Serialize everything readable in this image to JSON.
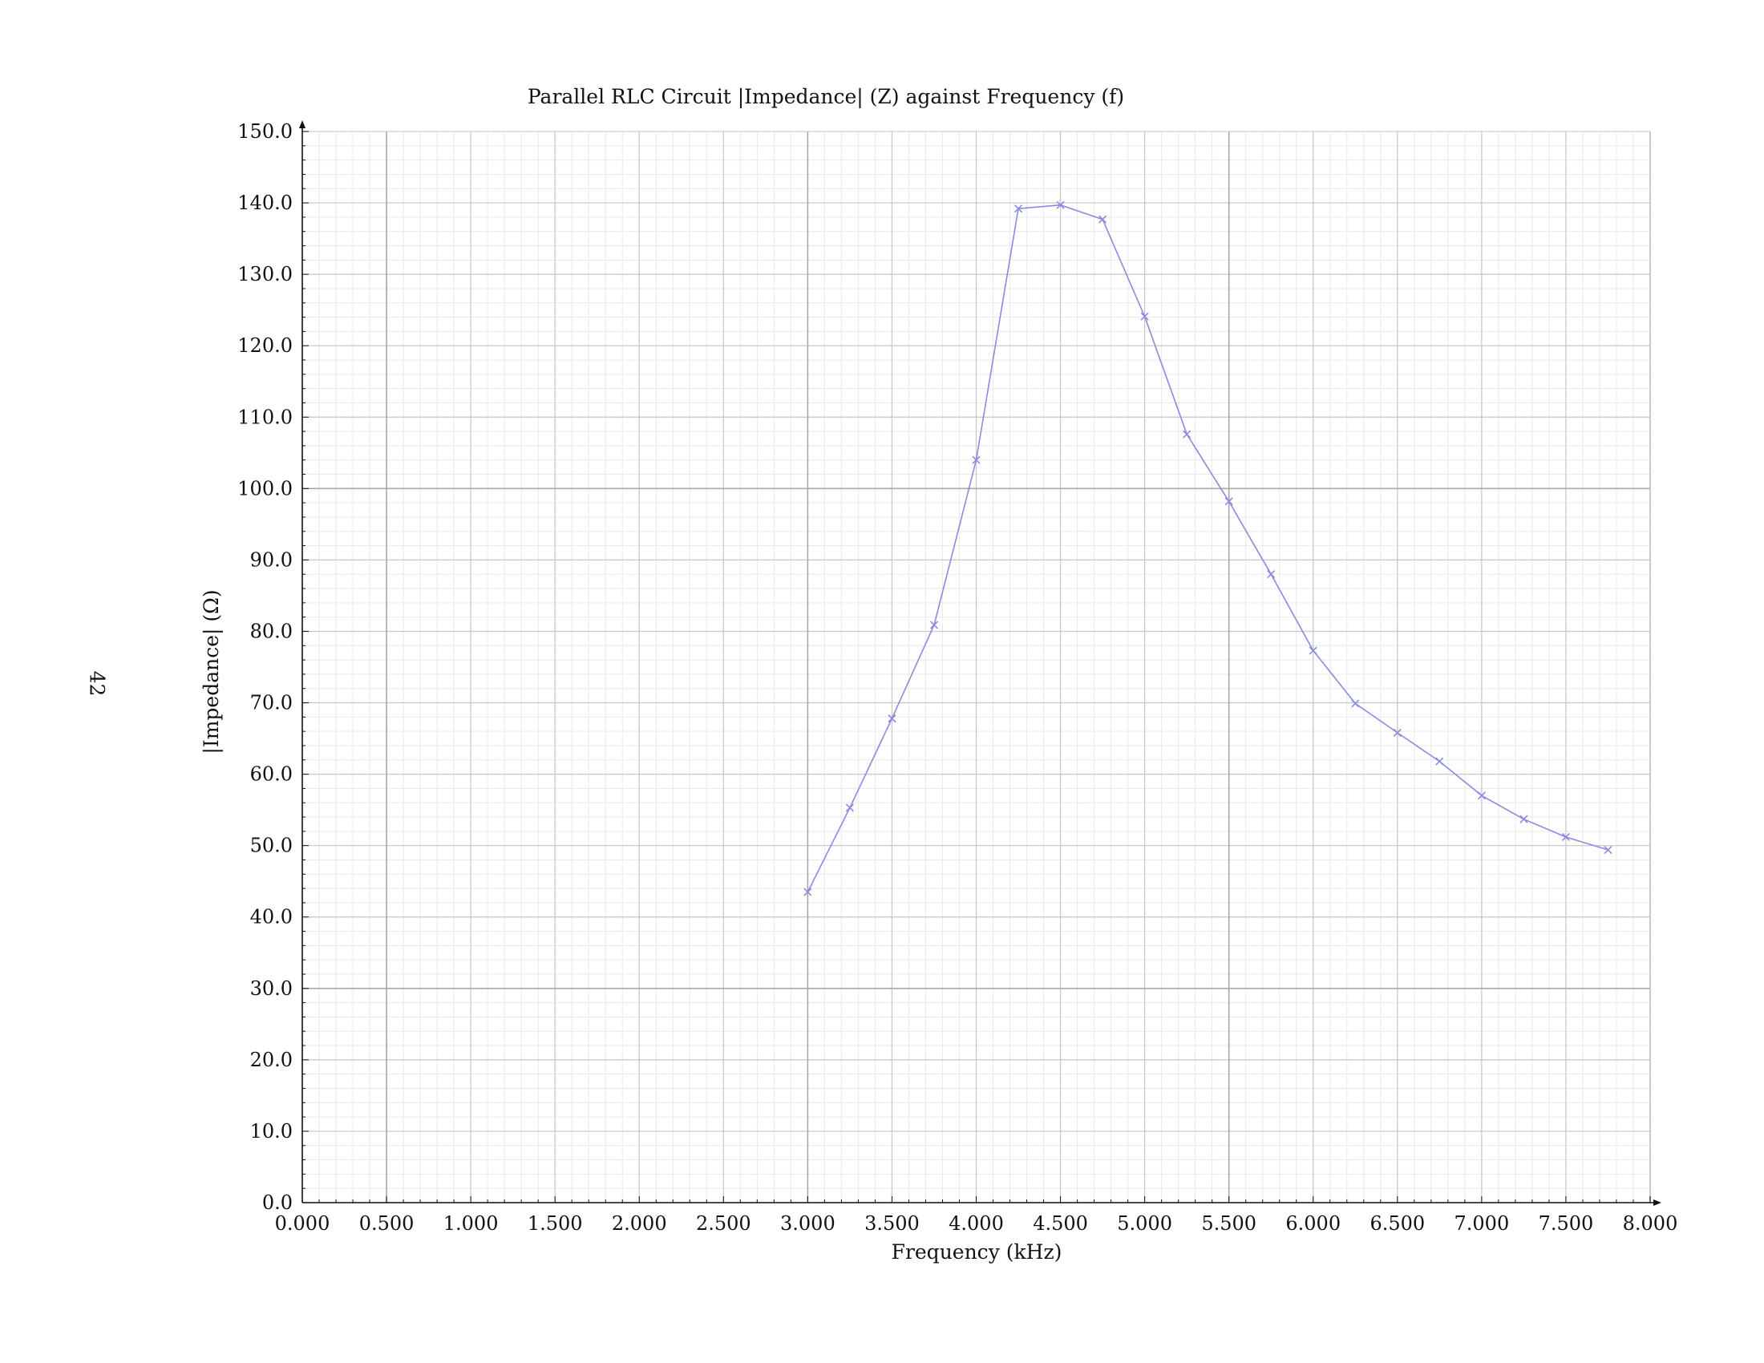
{
  "page": {
    "number": "42"
  },
  "chart_data": {
    "type": "line",
    "title": "Parallel RLC Circuit |Impedance| (Z) against Frequency (f)",
    "xlabel": "Frequency (kHz)",
    "ylabel": "|Impedance| (Ω)",
    "xlim": [
      0,
      8
    ],
    "ylim": [
      0,
      150
    ],
    "x_ticks": [
      "0.000",
      "0.500",
      "1.000",
      "1.500",
      "2.000",
      "2.500",
      "3.000",
      "3.500",
      "4.000",
      "4.500",
      "5.000",
      "5.500",
      "6.000",
      "6.500",
      "7.000",
      "7.500",
      "8.000"
    ],
    "y_ticks": [
      "0.0",
      "10.0",
      "20.0",
      "30.0",
      "40.0",
      "50.0",
      "60.0",
      "70.0",
      "80.0",
      "90.0",
      "100.0",
      "110.0",
      "120.0",
      "130.0",
      "140.0",
      "150.0"
    ],
    "grid": true,
    "marker": "x",
    "line_color": "#8a8ae0",
    "series": [
      {
        "x": [
          3.0,
          3.25,
          3.5,
          3.75,
          4.0,
          4.25,
          4.5,
          4.75,
          5.0,
          5.25,
          5.5,
          5.75,
          6.0,
          6.25,
          6.5,
          6.75,
          7.0,
          7.25,
          7.5,
          7.75
        ],
        "y": [
          43.5,
          55.3,
          67.8,
          80.9,
          104.0,
          139.2,
          139.7,
          137.7,
          124.1,
          107.6,
          98.2,
          88.0,
          77.3,
          69.9,
          65.8,
          61.8,
          57.0,
          53.7,
          51.2,
          49.4
        ]
      }
    ]
  }
}
